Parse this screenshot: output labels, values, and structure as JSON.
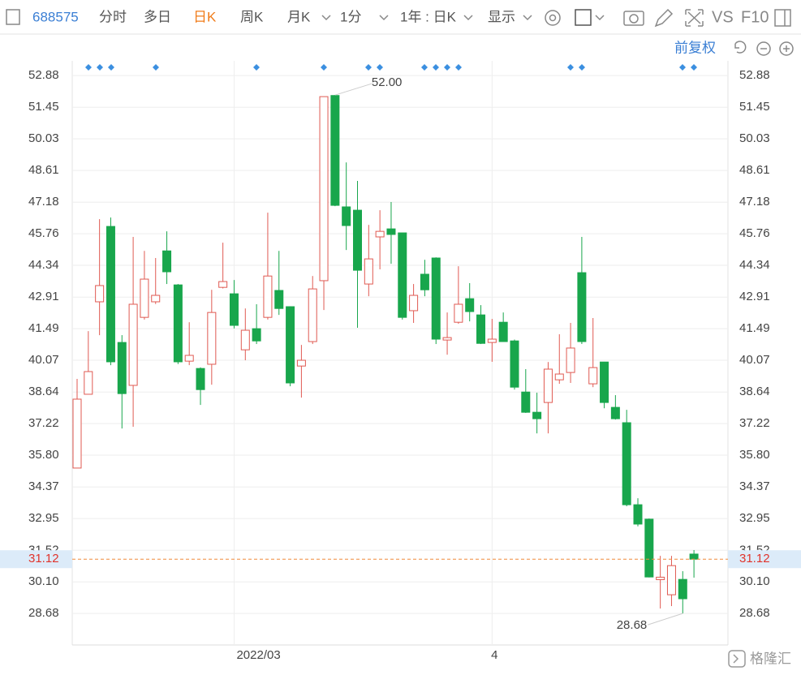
{
  "toolbar": {
    "code": "688575",
    "tabs": [
      "分时",
      "多日",
      "日K",
      "周K",
      "月K"
    ],
    "interval": "1分",
    "range": "1年 : 日K",
    "display": "显示",
    "vs": "VS",
    "f10": "F10",
    "adjust": "前复权"
  },
  "watermark": "格隆汇",
  "chart_data": {
    "type": "candlestick",
    "categories": [
      null,
      null,
      null,
      null,
      null,
      null,
      null,
      null,
      null,
      null,
      null,
      null,
      null,
      null,
      "2022/03",
      null,
      null,
      null,
      null,
      null,
      null,
      null,
      null,
      null,
      null,
      null,
      null,
      null,
      null,
      null,
      null,
      null,
      null,
      null,
      null,
      null,
      null,
      "4",
      null,
      null,
      null,
      null,
      null,
      null,
      null,
      null,
      null,
      null,
      null,
      null,
      null,
      null,
      null,
      null,
      null,
      null
    ],
    "open": [
      35.22,
      38.54,
      42.7,
      46.09,
      40.87,
      38.94,
      42.0,
      42.7,
      44.99,
      43.46,
      40.03,
      39.7,
      39.89,
      43.35,
      43.06,
      40.54,
      41.49,
      42.0,
      43.21,
      42.48,
      39.81,
      40.91,
      43.65,
      51.98,
      46.97,
      46.82,
      43.5,
      45.62,
      45.98,
      45.8,
      42.3,
      43.94,
      44.67,
      40.98,
      41.78,
      42.84,
      42.11,
      40.87,
      41.78,
      40.94,
      38.64,
      37.73,
      38.17,
      39.19,
      39.52,
      44.01,
      39.01,
      39.99,
      37.95,
      37.26,
      33.57,
      32.92,
      30.2,
      29.52,
      30.21,
      31.35
    ],
    "high": [
      39.23,
      41.38,
      46.42,
      46.49,
      41.2,
      45.62,
      44.99,
      44.67,
      45.87,
      43.5,
      41.78,
      39.75,
      43.24,
      45.36,
      43.68,
      42.4,
      42.59,
      46.71,
      44.99,
      42.5,
      40.76,
      43.86,
      51.93,
      52.0,
      48.97,
      48.14,
      46.16,
      46.82,
      47.19,
      45.8,
      43.5,
      44.59,
      44.7,
      42.22,
      44.3,
      43.54,
      42.55,
      41.93,
      42.22,
      41.0,
      39.67,
      38.61,
      39.99,
      41.24,
      41.75,
      45.62,
      41.97,
      40.0,
      38.5,
      37.84,
      33.86,
      32.95,
      31.27,
      31.27,
      30.58,
      31.53
    ],
    "low": [
      35.22,
      38.54,
      41.2,
      39.85,
      37.0,
      37.08,
      41.9,
      42.6,
      43.5,
      39.9,
      39.85,
      38.06,
      38.97,
      43.3,
      41.5,
      40.07,
      40.8,
      41.9,
      42.11,
      38.9,
      38.39,
      40.8,
      42.33,
      47.0,
      45.03,
      41.53,
      42.95,
      44.16,
      44.41,
      41.9,
      41.75,
      42.95,
      40.8,
      40.32,
      41.71,
      41.82,
      40.8,
      40.0,
      40.9,
      38.75,
      37.7,
      36.78,
      36.78,
      39.01,
      39.05,
      40.8,
      38.86,
      37.91,
      37.4,
      33.5,
      32.6,
      30.3,
      28.9,
      29.01,
      28.68,
      30.29
    ],
    "close": [
      38.32,
      39.56,
      43.43,
      40.0,
      38.57,
      42.59,
      43.72,
      42.99,
      44.05,
      40.0,
      40.29,
      38.75,
      42.22,
      43.61,
      41.64,
      41.42,
      40.94,
      43.86,
      42.4,
      39.05,
      40.07,
      43.28,
      51.93,
      47.04,
      46.13,
      44.12,
      44.63,
      45.87,
      45.73,
      42.0,
      42.99,
      43.24,
      41.02,
      41.09,
      42.59,
      42.26,
      40.83,
      41.02,
      40.91,
      38.86,
      37.73,
      37.44,
      39.67,
      39.45,
      40.62,
      40.91,
      39.74,
      38.17,
      37.44,
      33.57,
      32.7,
      30.32,
      30.31,
      30.83,
      29.34,
      31.12
    ],
    "up_color": "#e05a52",
    "down_color": "#18a64c",
    "ylim": [
      27.26,
      53.54
    ],
    "yticks": [
      52.88,
      51.45,
      50.03,
      48.61,
      47.18,
      45.76,
      44.34,
      42.91,
      41.49,
      40.07,
      38.64,
      37.22,
      {
        "value": 35.8,
        "label": "35.80"
      },
      34.37,
      32.95,
      31.52,
      {
        "value": 30.1,
        "label": "30.10"
      },
      28.68
    ],
    "grid": true,
    "max_label": {
      "value": 52,
      "label": "52.00"
    },
    "min_label": 28.68,
    "current_price": 31.12
  }
}
